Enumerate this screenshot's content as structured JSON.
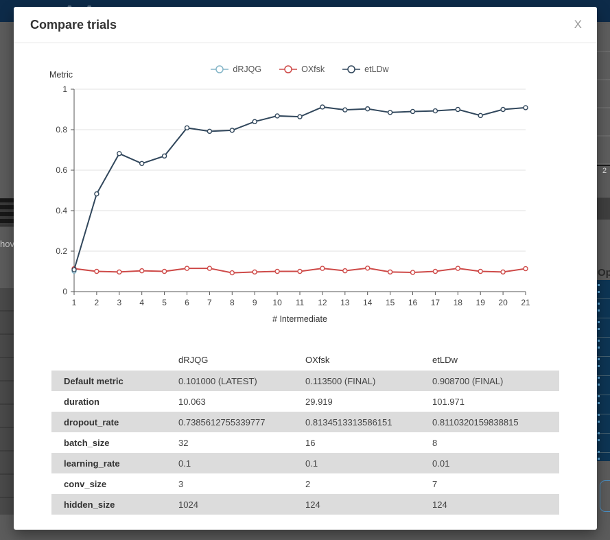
{
  "modal": {
    "title": "Compare trials",
    "close_icon": "X"
  },
  "chart_data": {
    "type": "line",
    "title": "",
    "ylabel": "Metric",
    "xlabel": "# Intermediate",
    "xlim": [
      1,
      21
    ],
    "ylim": [
      0,
      1
    ],
    "yticks": [
      0,
      0.2,
      0.4,
      0.6,
      0.8,
      1
    ],
    "xticks": [
      1,
      2,
      3,
      4,
      5,
      6,
      7,
      8,
      9,
      10,
      11,
      12,
      13,
      14,
      15,
      16,
      17,
      18,
      19,
      20,
      21
    ],
    "grid": "horizontal",
    "legend_position": "top-center",
    "series": [
      {
        "name": "dRJQG",
        "color": "#85b6c8",
        "x": [
          1
        ],
        "values": [
          0.101
        ]
      },
      {
        "name": "OXfsk",
        "color": "#ce4a48",
        "x": [
          1,
          2,
          3,
          4,
          5,
          6,
          7,
          8,
          9,
          10,
          11,
          12,
          13,
          14,
          15,
          16,
          17,
          18,
          19,
          20,
          21
        ],
        "values": [
          0.1135,
          0.1,
          0.097,
          0.103,
          0.1,
          0.115,
          0.115,
          0.093,
          0.097,
          0.1,
          0.1,
          0.115,
          0.103,
          0.116,
          0.097,
          0.095,
          0.1,
          0.115,
          0.1,
          0.097,
          0.1135
        ]
      },
      {
        "name": "etLDw",
        "color": "#31475c",
        "x": [
          1,
          2,
          3,
          4,
          5,
          6,
          7,
          8,
          9,
          10,
          11,
          12,
          13,
          14,
          15,
          16,
          17,
          18,
          19,
          20,
          21
        ],
        "values": [
          0.108,
          0.483,
          0.682,
          0.633,
          0.67,
          0.809,
          0.792,
          0.797,
          0.84,
          0.868,
          0.864,
          0.912,
          0.898,
          0.903,
          0.885,
          0.89,
          0.893,
          0.9,
          0.87,
          0.9,
          0.9087
        ]
      }
    ]
  },
  "table": {
    "headers": [
      "",
      "dRJQG",
      "OXfsk",
      "etLDw"
    ],
    "rows": [
      {
        "label": "Default metric",
        "values": [
          "0.101000 (LATEST)",
          "0.113500 (FINAL)",
          "0.908700 (FINAL)"
        ]
      },
      {
        "label": "duration",
        "values": [
          "10.063",
          "29.919",
          "101.971"
        ]
      },
      {
        "label": "dropout_rate",
        "values": [
          "0.7385612755339777",
          "0.8134513313586151",
          "0.8110320159838815"
        ]
      },
      {
        "label": "batch_size",
        "values": [
          "32",
          "16",
          "8"
        ]
      },
      {
        "label": "learning_rate",
        "values": [
          "0.1",
          "0.1",
          "0.01"
        ]
      },
      {
        "label": "conv_size",
        "values": [
          "3",
          "2",
          "7"
        ]
      },
      {
        "label": "hidden_size",
        "values": [
          "1024",
          "124",
          "124"
        ]
      }
    ]
  },
  "background": {
    "navbar_color": "#0d2b49",
    "overlay_color": "#5c5c5c",
    "logo_fragment": "AA",
    "left_text_fragment": "hov",
    "right_header_fragment": "Ope",
    "right_number_fragment": "2",
    "selected_row_color": "#0d3554"
  }
}
